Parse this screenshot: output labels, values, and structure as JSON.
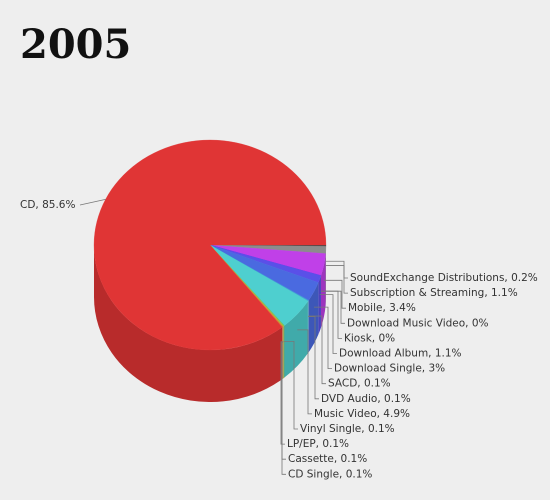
{
  "chart_data": {
    "type": "pie",
    "title": "2005",
    "value_labels": [
      "SoundExchange Distributions, 0.2%",
      "Subscription & Streaming, 1.1%",
      "Mobile, 3.4%",
      "Download Music Video, 0%",
      "Kiosk, 0%",
      "Download Album, 1.1%",
      "Download Single, 3%",
      "SACD, 0.1%",
      "DVD Audio, 0.1%",
      "Music Video, 4.9%",
      "Vinyl Single, 0.1%",
      "LP/EP, 0.1%",
      "Cassette, 0.1%",
      "CD Single, 0.1%",
      "CD, 85.6%"
    ],
    "values": [
      0.2,
      1.1,
      3.4,
      0,
      0,
      1.1,
      3,
      0.1,
      0.1,
      4.9,
      0.1,
      0.1,
      0.1,
      0.1,
      85.6
    ],
    "colors": [
      "#4a4a4a",
      "#8c8c8c",
      "#c040e8",
      "#9a30f0",
      "#6a3af0",
      "#5a50e8",
      "#4a6ae0",
      "#3a90d8",
      "#40b0d0",
      "#4ecfcf",
      "#60c070",
      "#a0c040",
      "#c0a030",
      "#e07030",
      "#e03535"
    ]
  }
}
